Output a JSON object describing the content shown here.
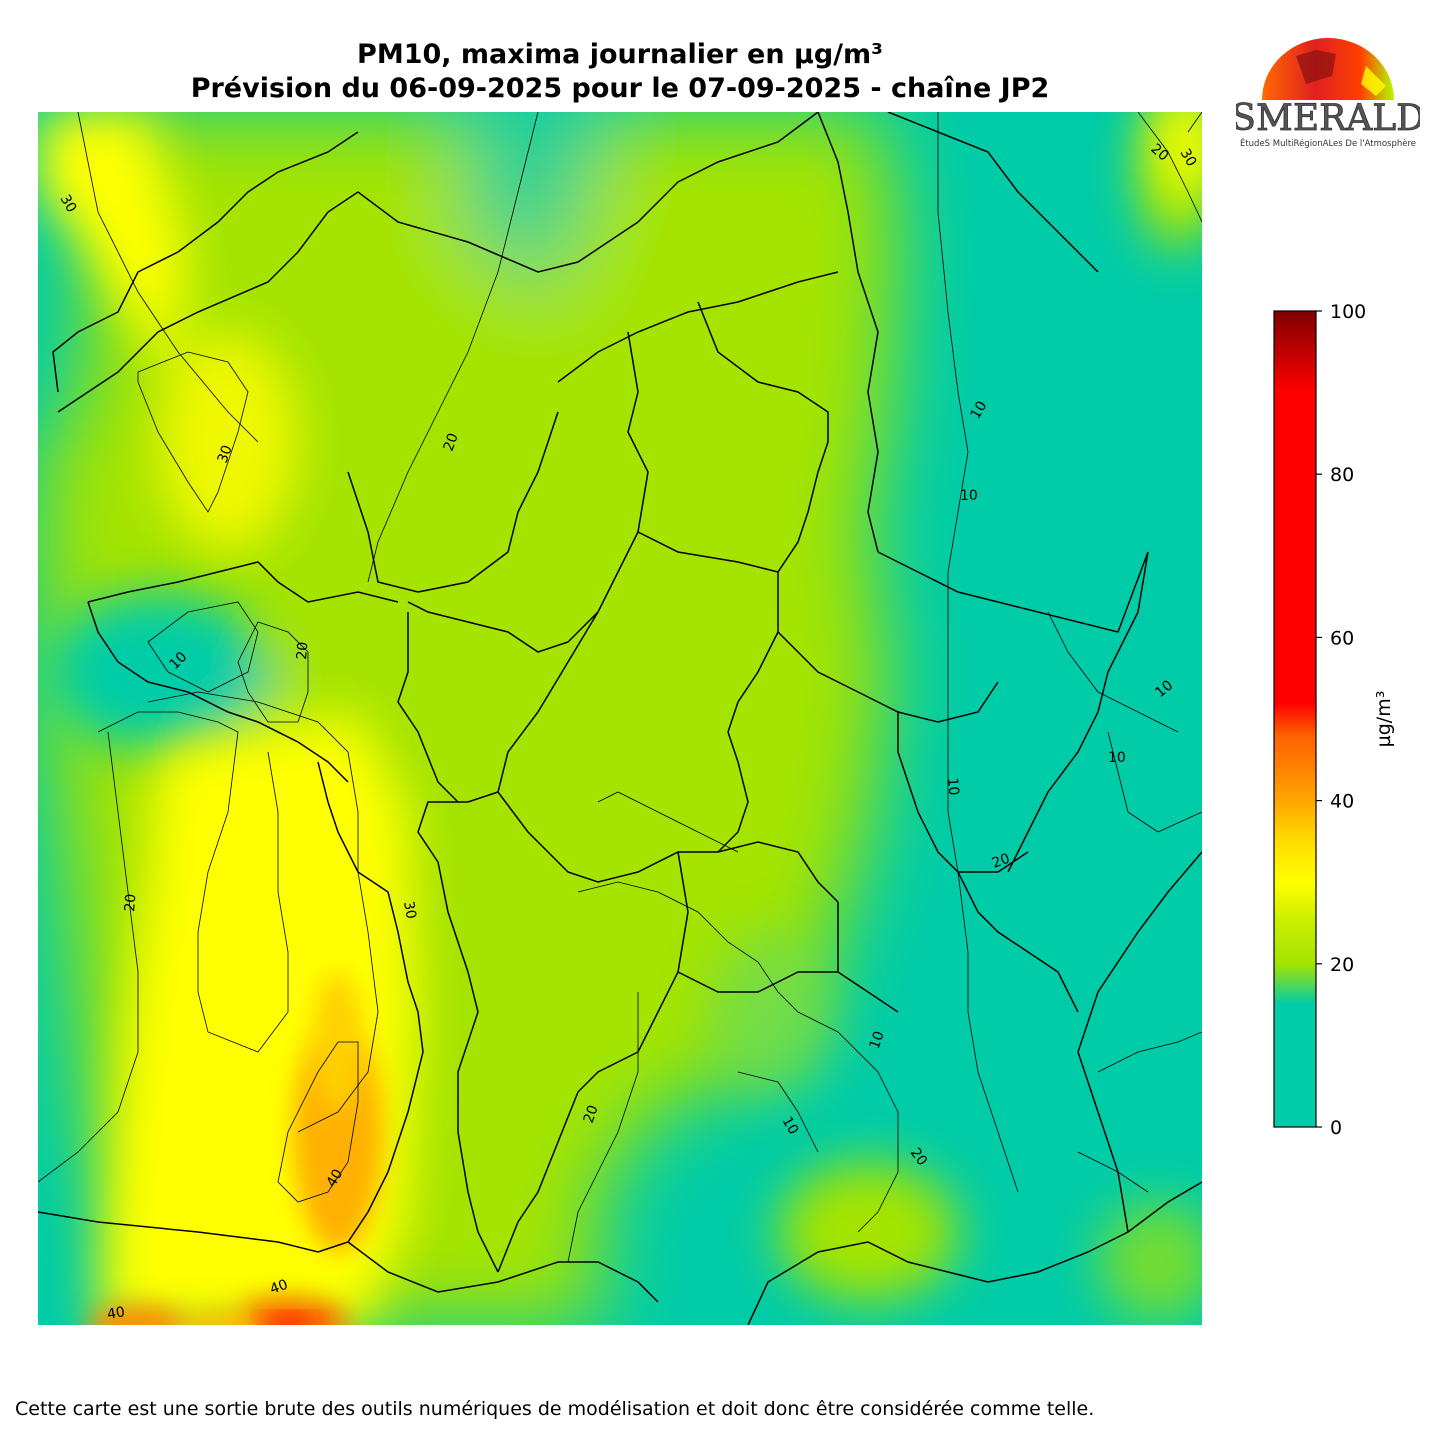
{
  "header": {
    "title_line1": "PM10, maxima journalier en µg/m³",
    "title_line2": "Prévision du 06-09-2025 pour le 07-09-2025 - chaîne JP2"
  },
  "logo": {
    "name": "ESMERALDA",
    "subtitle": "ÉtudeS MultiRégionALes De l'Atmosphère"
  },
  "colorbar": {
    "label": "µg/m³",
    "min": 0,
    "max": 100,
    "ticks": [
      "0",
      "20",
      "40",
      "60",
      "80",
      "100"
    ],
    "colors": {
      "c0": "#00cca8",
      "c20": "#a4e400",
      "c30": "#ffff00",
      "c40": "#ffa500",
      "c55": "#ff0000",
      "c100": "#800000"
    }
  },
  "contour_labels": [
    "30",
    "30",
    "20",
    "20",
    "10",
    "20",
    "10",
    "10",
    "10",
    "10",
    "10",
    "20",
    "30",
    "40",
    "40",
    "40",
    "20",
    "10",
    "20",
    "10",
    "20",
    "30"
  ],
  "footer": {
    "disclaimer": "Cette carte est une sortie brute des outils numériques de modélisation et doit donc être considérée comme telle."
  }
}
